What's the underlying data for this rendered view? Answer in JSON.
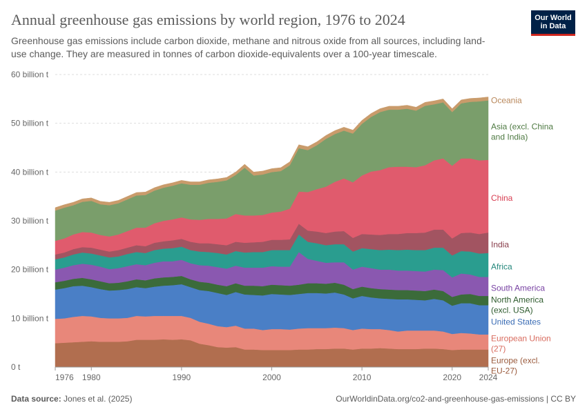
{
  "header": {
    "title": "Annual greenhouse gas emissions by world region, 1976 to 2024",
    "subtitle": "Greenhouse gas emissions include carbon dioxide, methane and nitrous oxide from all sources, including land-use change. They are measured in tonnes of carbon dioxide-equivalents over a 100-year timescale."
  },
  "logo": {
    "line1": "Our World",
    "line2": "in Data",
    "bg": "#002147",
    "accent": "#ce261e"
  },
  "footer": {
    "source_label": "Data source:",
    "source_text": "Jones et al. (2025)",
    "url": "OurWorldinData.org/co2-and-greenhouse-gas-emissions | CC BY"
  },
  "chart_data": {
    "type": "area",
    "stacked": true,
    "units": "billion tonnes CO2-equivalent",
    "x": [
      1976,
      1977,
      1978,
      1979,
      1980,
      1981,
      1982,
      1983,
      1984,
      1985,
      1986,
      1987,
      1988,
      1989,
      1990,
      1991,
      1992,
      1993,
      1994,
      1995,
      1996,
      1997,
      1998,
      1999,
      2000,
      2001,
      2002,
      2003,
      2004,
      2005,
      2006,
      2007,
      2008,
      2009,
      2010,
      2011,
      2012,
      2013,
      2014,
      2015,
      2016,
      2017,
      2018,
      2019,
      2020,
      2021,
      2022,
      2023,
      2024
    ],
    "xticks": [
      1976,
      1980,
      1990,
      2000,
      2010,
      2020,
      2024
    ],
    "xlim": [
      1976,
      2024
    ],
    "ylim": [
      0,
      60
    ],
    "yticks": [
      {
        "value": 0,
        "label": "0 t"
      },
      {
        "value": 10,
        "label": "10 billion t"
      },
      {
        "value": 20,
        "label": "20 billion t"
      },
      {
        "value": 30,
        "label": "30 billion t"
      },
      {
        "value": 40,
        "label": "40 billion t"
      },
      {
        "value": 50,
        "label": "50 billion t"
      },
      {
        "value": 60,
        "label": "60 billion t"
      }
    ],
    "grid": "horizontal-dashed",
    "legend": "right-end-labels",
    "series": [
      {
        "name": "Europe (excl. EU-27)",
        "color": "#b16e4f",
        "label_color": "#a2559c",
        "values": [
          4.9,
          5.0,
          5.1,
          5.2,
          5.3,
          5.2,
          5.2,
          5.2,
          5.3,
          5.6,
          5.6,
          5.6,
          5.7,
          5.6,
          5.7,
          5.5,
          4.8,
          4.5,
          4.1,
          4.0,
          4.1,
          3.6,
          3.6,
          3.5,
          3.5,
          3.5,
          3.5,
          3.6,
          3.6,
          3.7,
          3.7,
          3.8,
          3.8,
          3.6,
          3.8,
          3.8,
          3.9,
          3.8,
          3.7,
          3.7,
          3.7,
          3.8,
          3.8,
          3.7,
          3.5,
          3.6,
          3.6,
          3.6,
          3.6
        ]
      },
      {
        "name": "European Union (27)",
        "color": "#e8877a",
        "values": [
          5.0,
          5.0,
          5.2,
          5.3,
          5.1,
          4.9,
          4.8,
          4.8,
          4.8,
          4.9,
          4.8,
          4.9,
          4.8,
          4.9,
          4.8,
          4.6,
          4.5,
          4.4,
          4.3,
          4.2,
          4.4,
          4.3,
          4.3,
          4.1,
          4.3,
          4.3,
          4.2,
          4.3,
          4.4,
          4.3,
          4.3,
          4.3,
          4.2,
          4.0,
          4.1,
          4.0,
          3.9,
          3.8,
          3.6,
          3.8,
          3.8,
          3.7,
          3.7,
          3.6,
          3.3,
          3.4,
          3.3,
          3.1,
          3.1
        ]
      },
      {
        "name": "United States",
        "color": "#4a7fc6",
        "values": [
          6.0,
          6.2,
          6.3,
          6.2,
          6.0,
          5.9,
          5.7,
          5.8,
          5.9,
          5.9,
          5.8,
          6.0,
          6.2,
          6.3,
          6.5,
          6.3,
          6.5,
          6.7,
          6.8,
          6.6,
          6.9,
          7.0,
          6.9,
          7.1,
          7.2,
          7.1,
          7.1,
          7.1,
          7.2,
          7.2,
          7.1,
          7.2,
          6.9,
          6.5,
          6.7,
          6.5,
          6.3,
          6.4,
          6.6,
          6.4,
          6.3,
          6.2,
          6.5,
          6.4,
          5.8,
          6.1,
          6.2,
          6.0,
          6.0
        ]
      },
      {
        "name": "North America (excl. USA)",
        "color": "#3b6b3a",
        "values": [
          1.5,
          1.5,
          1.5,
          1.6,
          1.6,
          1.6,
          1.5,
          1.5,
          1.6,
          1.6,
          1.6,
          1.7,
          1.7,
          1.7,
          1.7,
          1.6,
          1.7,
          1.7,
          1.7,
          1.8,
          1.8,
          1.8,
          1.9,
          1.9,
          1.9,
          1.9,
          1.9,
          1.9,
          2.0,
          2.0,
          2.0,
          2.0,
          2.0,
          1.9,
          1.9,
          1.9,
          1.9,
          1.9,
          1.9,
          1.9,
          1.9,
          1.9,
          1.9,
          1.9,
          1.8,
          1.8,
          1.9,
          1.9,
          1.9
        ]
      },
      {
        "name": "South America",
        "color": "#8a58b0",
        "values": [
          2.6,
          2.7,
          2.8,
          2.9,
          3.0,
          3.0,
          2.9,
          3.0,
          3.1,
          3.1,
          3.1,
          3.2,
          3.3,
          3.2,
          3.3,
          3.3,
          3.4,
          3.5,
          3.6,
          3.6,
          3.6,
          3.7,
          3.7,
          3.8,
          3.8,
          3.8,
          3.9,
          6.7,
          5.0,
          4.6,
          4.3,
          4.2,
          4.6,
          4.0,
          4.1,
          4.1,
          4.0,
          4.1,
          4.0,
          4.0,
          4.0,
          4.0,
          4.1,
          4.3,
          4.0,
          4.3,
          4.0,
          3.9,
          3.9
        ]
      },
      {
        "name": "Africa",
        "color": "#2a9d8f",
        "values": [
          2.1,
          2.1,
          2.2,
          2.3,
          2.3,
          2.3,
          2.4,
          2.4,
          2.5,
          2.5,
          2.5,
          2.6,
          2.6,
          2.7,
          2.7,
          2.7,
          2.8,
          2.8,
          2.9,
          2.9,
          3.0,
          3.1,
          3.2,
          3.2,
          3.3,
          3.4,
          3.4,
          3.6,
          3.5,
          3.6,
          3.6,
          3.7,
          3.7,
          3.7,
          3.8,
          3.9,
          4.0,
          4.1,
          4.2,
          4.3,
          4.3,
          4.4,
          4.5,
          4.6,
          4.5,
          4.6,
          4.7,
          4.8,
          4.9
        ]
      },
      {
        "name": "India",
        "color": "#a25461",
        "values": [
          1.0,
          1.0,
          1.1,
          1.1,
          1.2,
          1.2,
          1.2,
          1.3,
          1.3,
          1.4,
          1.4,
          1.5,
          1.5,
          1.6,
          1.6,
          1.7,
          1.7,
          1.8,
          1.8,
          1.9,
          1.9,
          2.0,
          2.0,
          2.1,
          2.1,
          2.1,
          2.2,
          2.2,
          2.3,
          2.4,
          2.5,
          2.6,
          2.7,
          2.8,
          2.9,
          3.0,
          3.1,
          3.2,
          3.3,
          3.4,
          3.5,
          3.6,
          3.7,
          3.7,
          3.5,
          3.7,
          3.9,
          4.0,
          4.2
        ]
      },
      {
        "name": "China",
        "color": "#e05b6d",
        "values": [
          2.8,
          2.9,
          3.0,
          3.1,
          3.1,
          3.0,
          3.1,
          3.2,
          3.4,
          3.6,
          3.8,
          4.0,
          4.2,
          4.3,
          4.4,
          4.6,
          4.8,
          5.0,
          5.2,
          5.5,
          5.7,
          5.6,
          5.5,
          5.5,
          5.6,
          5.8,
          6.3,
          6.6,
          7.9,
          8.7,
          9.5,
          10.2,
          10.8,
          11.4,
          12.0,
          12.9,
          13.3,
          13.7,
          13.8,
          13.6,
          13.5,
          13.8,
          14.2,
          14.6,
          14.9,
          15.3,
          15.2,
          15.1,
          14.9
        ]
      },
      {
        "name": "Asia (excl. China and India)",
        "color": "#7a9e6b",
        "values": [
          6.2,
          6.3,
          6.0,
          6.2,
          6.5,
          6.3,
          6.4,
          6.4,
          6.5,
          6.6,
          6.7,
          6.7,
          6.8,
          6.9,
          7.0,
          7.1,
          7.2,
          7.4,
          7.6,
          7.8,
          8.0,
          9.8,
          8.2,
          8.3,
          8.3,
          8.3,
          8.9,
          8.9,
          8.6,
          9.0,
          9.8,
          9.8,
          9.8,
          10.0,
          10.6,
          11.2,
          11.9,
          11.8,
          11.7,
          11.9,
          11.6,
          12.2,
          11.5,
          11.5,
          11.0,
          11.3,
          11.6,
          12.1,
          12.2
        ]
      },
      {
        "name": "Oceania",
        "color": "#c99b6b",
        "values": [
          0.6,
          0.6,
          0.6,
          0.6,
          0.6,
          0.6,
          0.6,
          0.6,
          0.6,
          0.6,
          0.6,
          0.6,
          0.6,
          0.6,
          0.6,
          0.6,
          0.6,
          0.6,
          0.6,
          0.6,
          0.6,
          0.7,
          0.7,
          0.7,
          0.7,
          0.7,
          0.7,
          0.7,
          0.7,
          0.7,
          0.7,
          0.7,
          0.7,
          0.7,
          0.7,
          0.7,
          0.7,
          0.7,
          0.7,
          0.7,
          0.7,
          0.7,
          0.7,
          0.7,
          0.7,
          0.7,
          0.7,
          0.7,
          0.7
        ]
      }
    ],
    "end_labels": [
      {
        "series": "Oceania",
        "lines": [
          "Oceania"
        ],
        "color": "#b8875a"
      },
      {
        "series": "Asia (excl. China and India)",
        "lines": [
          "Asia (excl. China",
          "and India)"
        ],
        "color": "#4f7a43"
      },
      {
        "series": "China",
        "lines": [
          "China"
        ],
        "color": "#d73c50"
      },
      {
        "series": "India",
        "lines": [
          "India"
        ],
        "color": "#883d4a"
      },
      {
        "series": "Africa",
        "lines": [
          "Africa"
        ],
        "color": "#22867a"
      },
      {
        "series": "South America",
        "lines": [
          "South America"
        ],
        "color": "#7741a2"
      },
      {
        "series": "North America (excl. USA)",
        "lines": [
          "North America",
          "(excl. USA)"
        ],
        "color": "#2d5a2c"
      },
      {
        "series": "United States",
        "lines": [
          "United States"
        ],
        "color": "#3a6cb5"
      },
      {
        "series": "European Union (27)",
        "lines": [
          "European Union",
          "(27)"
        ],
        "color": "#d86b5e"
      },
      {
        "series": "Europe (excl. EU-27)",
        "lines": [
          "Europe (excl.",
          "EU-27)"
        ],
        "color": "#9a5a3c"
      }
    ]
  }
}
